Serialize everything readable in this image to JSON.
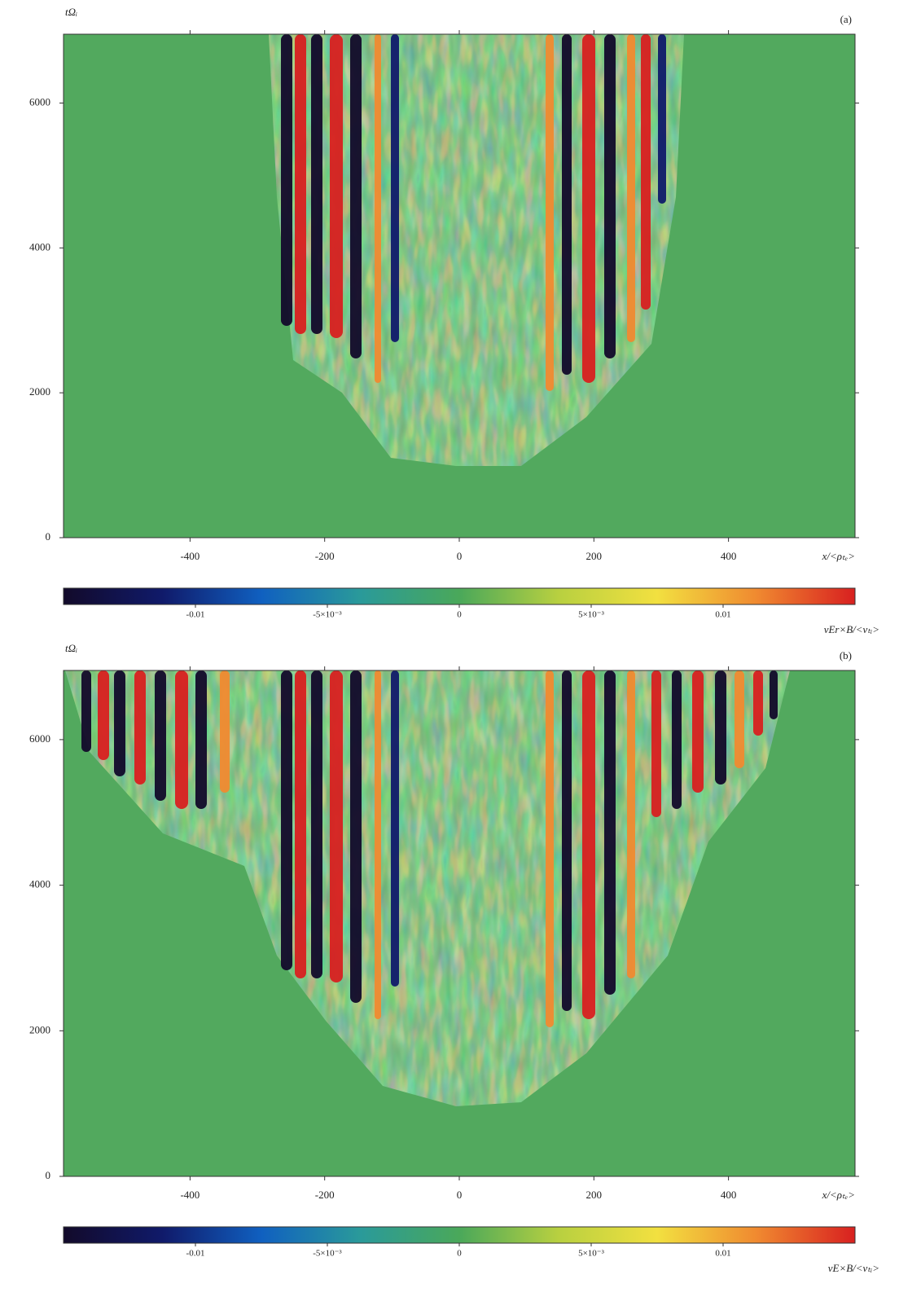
{
  "chart_data": [
    {
      "type": "heatmap",
      "label": "(a)",
      "xlabel": "x/<ρₜₑ>",
      "ylabel": "tΩᵢ",
      "xlim": [
        -588,
        588
      ],
      "ylim": [
        0,
        6950
      ],
      "xticks": [
        -400,
        -200,
        0,
        200,
        400
      ],
      "yticks": [
        0,
        2000,
        4000,
        6000
      ],
      "clim": [
        -0.015,
        0.015
      ],
      "cticks": [
        -0.01,
        {
          "value": -0.005,
          "label": "-5×10⁻³"
        },
        0,
        {
          "value": 0.005,
          "label": "5×10⁻³"
        },
        0.01
      ],
      "colorbar_label": "vEr×B/<vₜᵢ>",
      "colormap": [
        "#120a2a",
        "#101a6a",
        "#1060c0",
        "#2a9a9a",
        "#4aa85a",
        "#b8d040",
        "#f2e040",
        "#f08a30",
        "#d82020"
      ],
      "background": "#52a95e"
    },
    {
      "type": "heatmap",
      "label": "(b)",
      "xlabel": "x/<ρₜₑ>",
      "ylabel": "tΩᵢ",
      "xlim": [
        -588,
        588
      ],
      "ylim": [
        0,
        6950
      ],
      "xticks": [
        -400,
        -200,
        0,
        200,
        400
      ],
      "yticks": [
        0,
        2000,
        4000,
        6000
      ],
      "clim": [
        -0.015,
        0.015
      ],
      "cticks": [
        -0.01,
        {
          "value": -0.005,
          "label": "-5×10⁻³"
        },
        0,
        {
          "value": 0.005,
          "label": "5×10⁻³"
        },
        0.01
      ],
      "colorbar_label": "vE×B/<vₜᵢ>",
      "colormap": [
        "#120a2a",
        "#101a6a",
        "#1060c0",
        "#2a9a9a",
        "#4aa85a",
        "#b8d040",
        "#f2e040",
        "#f08a30",
        "#d82020"
      ],
      "background": "#52a95e"
    }
  ]
}
